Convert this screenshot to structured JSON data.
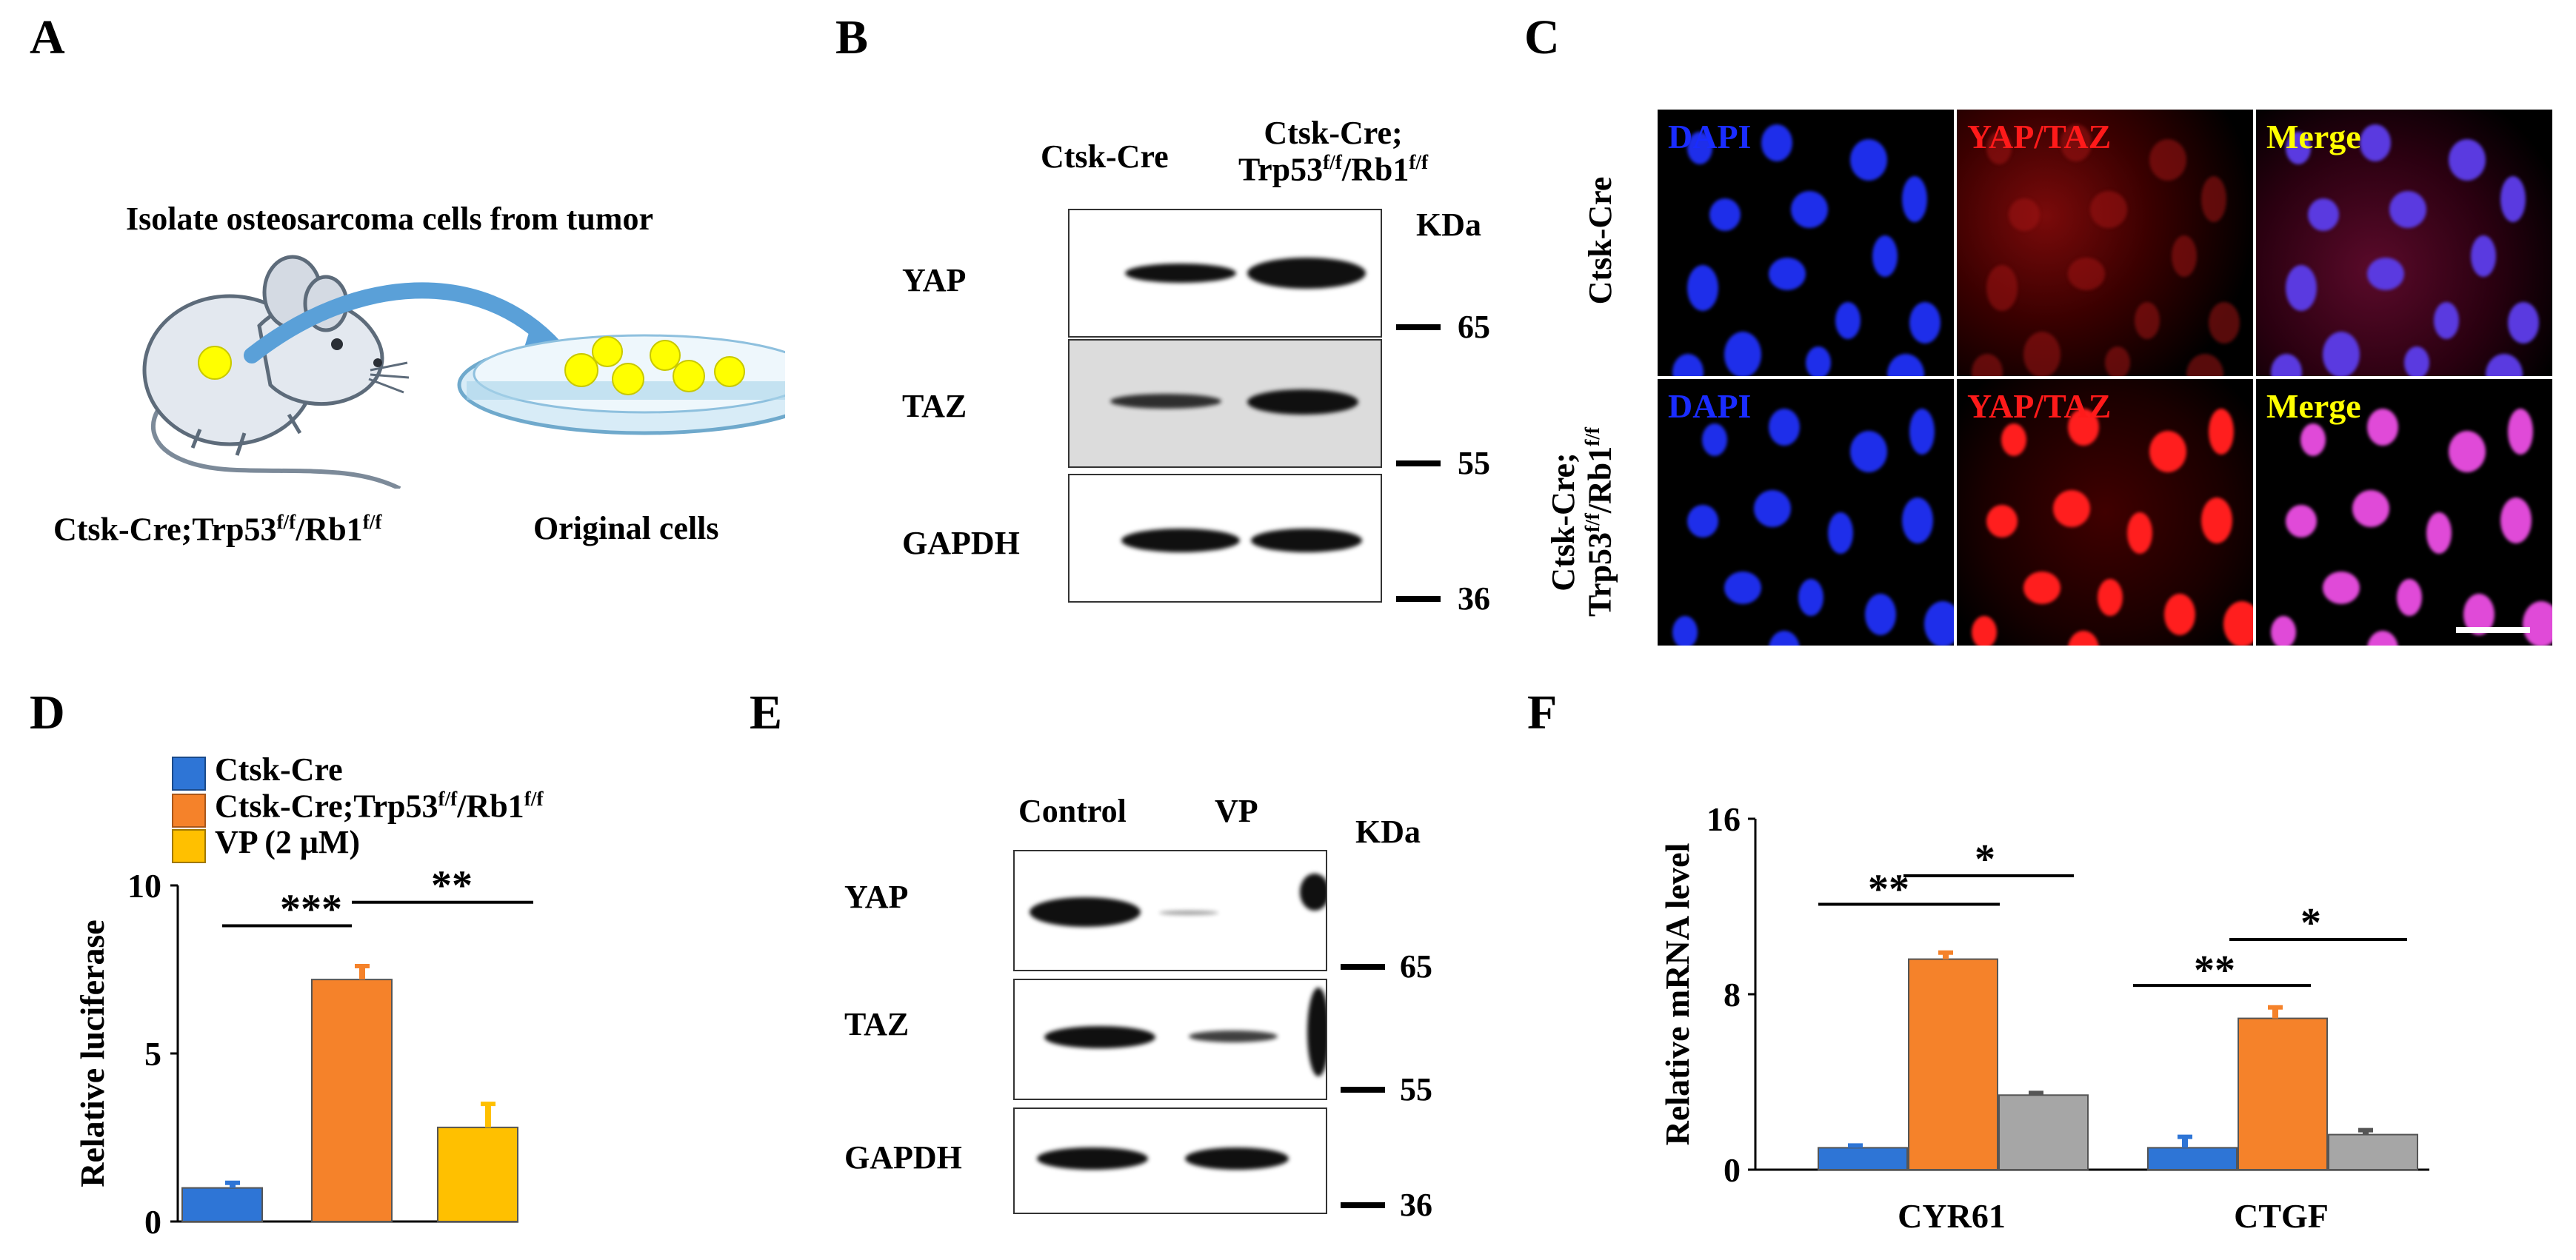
{
  "panels": {
    "A": "A",
    "B": "B",
    "C": "C",
    "D": "D",
    "E": "E",
    "F": "F"
  },
  "panelA": {
    "title": "Isolate osteosarcoma cells from tumor",
    "mouse_label_base": "Ctsk-Cre;Trp53",
    "mouse_label_sup1": "f/f",
    "mouse_label_mid": "/Rb1",
    "mouse_label_sup2": "f/f",
    "cells_label": "Original cells"
  },
  "panelB": {
    "col1": "Ctsk-Cre",
    "col2_line1": "Ctsk-Cre;",
    "col2_line2_base": "Trp53",
    "col2_sup1": "f/f",
    "col2_mid": "/Rb1",
    "col2_sup2": "f/f",
    "kda": "KDa",
    "rows": [
      "YAP",
      "TAZ",
      "GAPDH"
    ],
    "markers": [
      "65",
      "55",
      "36"
    ]
  },
  "panelC": {
    "row1_label": "Ctsk-Cre",
    "row2_line1": "Ctsk-Cre;",
    "row2_line2_base": "Trp53",
    "row2_sup1": "f/f",
    "row2_mid": "/Rb1",
    "row2_sup2": "f/f",
    "channels": [
      "DAPI",
      "YAP/TAZ",
      "Merge"
    ],
    "colors": {
      "dapi": "#1a2cff",
      "yap": "#ff1a1a",
      "merge_label": "#ffff00",
      "merge_nucleus": "#e04ad8"
    }
  },
  "panelD": {
    "legend": [
      {
        "name": "Ctsk-Cre",
        "color": "#2e75d6"
      },
      {
        "name_base": "Ctsk-Cre;Trp53",
        "sup1": "f/f",
        "mid": "/Rb1",
        "sup2": "f/f",
        "color": "#f5822a"
      },
      {
        "name": "VP (2 μM)",
        "color": "#ffc000"
      }
    ],
    "sig": [
      "***",
      "**"
    ]
  },
  "panelE": {
    "cols": [
      "Control",
      "VP"
    ],
    "kda": "KDa",
    "rows": [
      "YAP",
      "TAZ",
      "GAPDH"
    ],
    "markers": [
      "65",
      "55",
      "36"
    ]
  },
  "panelF": {
    "sig": [
      "**",
      "*",
      "**",
      "*"
    ]
  },
  "chart_data": [
    {
      "type": "bar",
      "panel": "D",
      "ylabel": "Relative luciferase",
      "ylim": [
        0,
        10
      ],
      "yticks": [
        0,
        5,
        10
      ],
      "categories": [
        "Ctsk-Cre",
        "Ctsk-Cre;Trp53f/f/Rb1f/f",
        "VP (2 μM)"
      ],
      "values": [
        1.0,
        7.2,
        2.8
      ],
      "errors": [
        0.15,
        0.4,
        0.7
      ],
      "colors": [
        "#2e75d6",
        "#f5822a",
        "#ffc000"
      ],
      "grid": false
    },
    {
      "type": "bar",
      "panel": "F",
      "ylabel": "Relative mRNA level",
      "ylim": [
        0,
        16
      ],
      "yticks": [
        0,
        8,
        16
      ],
      "categories": [
        "CYR61",
        "CTGF"
      ],
      "series": [
        {
          "values": [
            1.0,
            1.0
          ],
          "errors": [
            0.1,
            0.5
          ],
          "color": "#2e75d6"
        },
        {
          "values": [
            9.6,
            6.9
          ],
          "errors": [
            0.3,
            0.5
          ],
          "color": "#f5822a"
        },
        {
          "values": [
            3.4,
            1.6
          ],
          "errors": [
            0.1,
            0.2
          ],
          "color": "#a6a6a6"
        }
      ],
      "grid": false
    }
  ]
}
